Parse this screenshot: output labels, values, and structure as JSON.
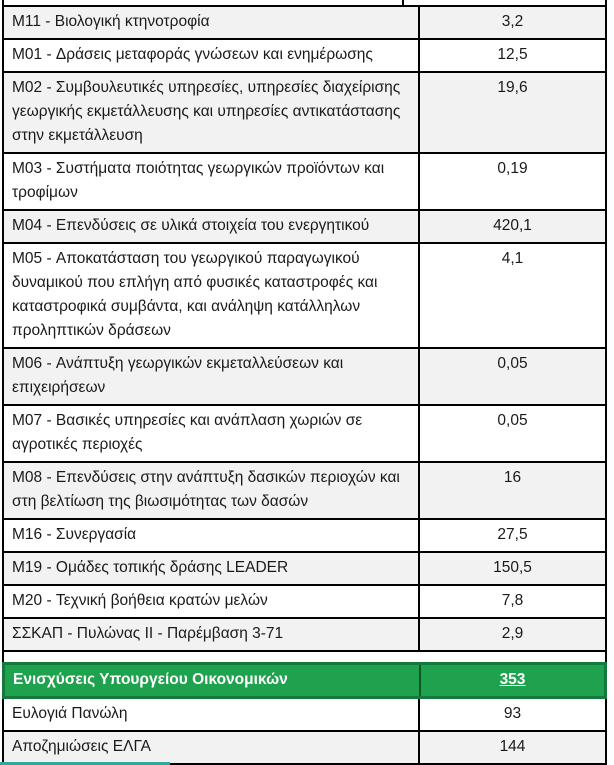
{
  "document": {
    "language": "el",
    "colors": {
      "highlight_bg": "#1FA24D",
      "highlight_border": "#15793B",
      "alt_row_bg": "#F2F2F2",
      "grid_border": "#000000",
      "highlight_text": "#FFFFFF",
      "body_text": "#1A1A1A",
      "bottom_edge_teal": "#2FA8A0"
    }
  },
  "table": {
    "columns": [
      "measure",
      "amount"
    ],
    "rows": [
      {
        "type": "cut",
        "label": "",
        "value": ""
      },
      {
        "shaded": true,
        "label": "M11 - Βιολογική κτηνοτροφία",
        "value": "3,2"
      },
      {
        "shaded": false,
        "label": "M01 - Δράσεις μεταφοράς γνώσεων και ενημέρωσης",
        "value": "12,5"
      },
      {
        "shaded": true,
        "label": "M02 - Συμβουλευτικές υπηρεσίες, υπηρεσίες διαχείρισης γεωργικής εκμετάλλευσης και υπηρεσίες αντικατάστασης στην εκμετάλλευση",
        "value": "19,6"
      },
      {
        "shaded": false,
        "label": "M03 - Συστήματα ποιότητας γεωργικών προϊόντων και τροφίμων",
        "value": "0,19"
      },
      {
        "shaded": true,
        "label": "M04 - Επενδύσεις σε υλικά στοιχεία του ενεργητικού",
        "value": "420,1"
      },
      {
        "shaded": false,
        "label": "M05 - Αποκατάσταση του γεωργικού παραγωγικού δυναμικού που επλήγη από φυσικές καταστροφές και καταστροφικά συμβάντα, και ανάληψη κατάλληλων προληπτικών δράσεων",
        "value": "4,1"
      },
      {
        "shaded": true,
        "label": "M06 - Ανάπτυξη γεωργικών εκμεταλλεύσεων και επιχειρήσεων",
        "value": "0,05"
      },
      {
        "shaded": false,
        "label": "M07 - Βασικές υπηρεσίες και ανάπλαση χωριών σε αγροτικές περιοχές",
        "value": "0,05"
      },
      {
        "shaded": true,
        "label": "M08 - Επενδύσεις στην ανάπτυξη δασικών περιοχών και στη βελτίωση της βιωσιμότητας των δασών",
        "value": "16"
      },
      {
        "shaded": false,
        "label": "M16 - Συνεργασία",
        "value": "27,5"
      },
      {
        "shaded": true,
        "label": "M19 - Ομάδες τοπικής δράσης LEADER",
        "value": "150,5"
      },
      {
        "shaded": false,
        "label": "M20 - Τεχνική βοήθεια κρατών μελών",
        "value": "7,8"
      },
      {
        "shaded": true,
        "label": "ΣΣΚΑΠ - Πυλώνας ΙΙ - Παρέμβαση 3-71",
        "value": "2,9"
      },
      {
        "type": "spacer",
        "label": "",
        "value": ""
      },
      {
        "type": "highlight",
        "label": "Ενισχύσεις Υπουργείου Οικονομικών",
        "value": "353",
        "underline": true
      },
      {
        "shaded": false,
        "label": "Ευλογιά Πανώλη",
        "value": "93"
      },
      {
        "shaded": true,
        "label": "Αποζημιώσεις ΕΛΓΑ",
        "value": "144"
      }
    ]
  }
}
